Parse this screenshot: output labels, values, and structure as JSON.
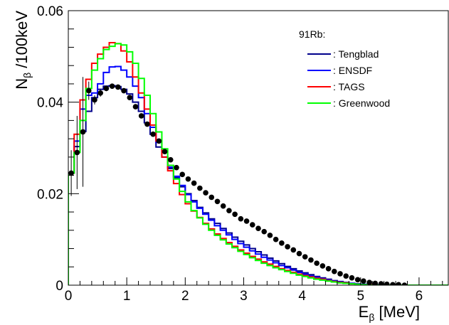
{
  "chart_data": {
    "type": "line",
    "xlabel_main": "E",
    "xlabel_sub": "β",
    "xlabel_unit": " [MeV]",
    "ylabel_main": "N",
    "ylabel_sub": "β",
    "ylabel_unit": " /100keV",
    "xlim": [
      0,
      6.5
    ],
    "ylim": [
      0,
      0.06
    ],
    "x_ticks": [
      0,
      1,
      2,
      3,
      4,
      5,
      6
    ],
    "x_tick_labels": [
      "0",
      "1",
      "2",
      "3",
      "4",
      "5",
      "6"
    ],
    "y_ticks": [
      0,
      0.02,
      0.04,
      0.06
    ],
    "y_tick_labels": [
      "0",
      "0.02",
      "0.04",
      "0.06"
    ],
    "legend_title": "91Rb:",
    "legend_position": "top-right",
    "bin_width": 0.1,
    "series": [
      {
        "name": ": Tengblad",
        "color": "#00008b",
        "style": "step",
        "values": [
          0.0245,
          0.0303,
          0.0336,
          0.038,
          0.041,
          0.0428,
          0.0435,
          0.0436,
          0.0434,
          0.0428,
          0.0418,
          0.04,
          0.038,
          0.0355,
          0.033,
          0.0302,
          0.028,
          0.0255,
          0.0235,
          0.0215,
          0.02,
          0.0185,
          0.017,
          0.0158,
          0.0145,
          0.0135,
          0.0124,
          0.0114,
          0.0105,
          0.0096,
          0.0088,
          0.008,
          0.0073,
          0.0066,
          0.0059,
          0.0053,
          0.0047,
          0.0041,
          0.0036,
          0.0031,
          0.0027,
          0.0023,
          0.0019,
          0.0016,
          0.0013,
          0.001,
          0.0008,
          0.0006,
          0.0004,
          0.0003,
          0.0002,
          0.0001,
          0.0001,
          0.0,
          0.0,
          0.0,
          0.0,
          0.0,
          0.0,
          0.0,
          0.0,
          0.0,
          0.0,
          0.0,
          0.0
        ]
      },
      {
        "name": ": ENSDF",
        "color": "#0000ff",
        "style": "step",
        "values": [
          0.0245,
          0.0315,
          0.0385,
          0.0415,
          0.042,
          0.044,
          0.0465,
          0.0477,
          0.0478,
          0.047,
          0.0455,
          0.0435,
          0.041,
          0.0375,
          0.0345,
          0.0312,
          0.028,
          0.0258,
          0.0238,
          0.0218,
          0.0198,
          0.0182,
          0.0168,
          0.0155,
          0.0142,
          0.013,
          0.012,
          0.011,
          0.01,
          0.0091,
          0.0083,
          0.0075,
          0.0068,
          0.0061,
          0.0055,
          0.0049,
          0.0043,
          0.0038,
          0.0033,
          0.0028,
          0.0024,
          0.002,
          0.0017,
          0.0014,
          0.0011,
          0.0009,
          0.0007,
          0.0005,
          0.0004,
          0.0003,
          0.0002,
          0.0001,
          0.0,
          0.0,
          0.0,
          0.0,
          0.0,
          0.0,
          0.0,
          0.0,
          0.0,
          0.0,
          0.0,
          0.0,
          0.0
        ]
      },
      {
        "name": ": TAGS",
        "color": "#ff0000",
        "style": "step",
        "values": [
          0.0245,
          0.033,
          0.0405,
          0.045,
          0.0485,
          0.0505,
          0.052,
          0.053,
          0.0528,
          0.0512,
          0.0488,
          0.0455,
          0.042,
          0.0385,
          0.035,
          0.0315,
          0.028,
          0.025,
          0.0222,
          0.0198,
          0.0178,
          0.0162,
          0.0148,
          0.0135,
          0.0123,
          0.0112,
          0.0102,
          0.0093,
          0.0085,
          0.0077,
          0.007,
          0.0063,
          0.0057,
          0.0051,
          0.0046,
          0.0041,
          0.0036,
          0.0032,
          0.0028,
          0.0024,
          0.0021,
          0.0018,
          0.0015,
          0.0013,
          0.001,
          0.0008,
          0.0006,
          0.0005,
          0.0003,
          0.0002,
          0.0001,
          0.0001,
          0.0,
          0.0,
          0.0,
          0.0,
          0.0,
          0.0,
          0.0,
          0.0,
          0.0,
          0.0,
          0.0,
          0.0,
          0.0
        ]
      },
      {
        "name": ": Greenwood",
        "color": "#00ff00",
        "style": "step",
        "values": [
          0.0245,
          0.029,
          0.036,
          0.043,
          0.047,
          0.0495,
          0.0515,
          0.0522,
          0.0528,
          0.0525,
          0.051,
          0.0485,
          0.0452,
          0.0415,
          0.0375,
          0.0335,
          0.0298,
          0.0262,
          0.0232,
          0.0205,
          0.0182,
          0.0163,
          0.0147,
          0.0133,
          0.012,
          0.0109,
          0.0099,
          0.009,
          0.0082,
          0.0074,
          0.0067,
          0.006,
          0.0054,
          0.0048,
          0.0043,
          0.0038,
          0.0034,
          0.003,
          0.0026,
          0.0022,
          0.0019,
          0.0016,
          0.0013,
          0.0011,
          0.0009,
          0.0007,
          0.0005,
          0.0004,
          0.0003,
          0.0002,
          0.0001,
          0.0,
          0.0,
          0.0,
          0.0,
          0.0,
          0.0,
          0.0,
          0.0,
          0.0,
          0.0,
          0.0,
          0.0,
          0.0,
          0.0
        ]
      }
    ],
    "data_points": {
      "marker_color": "#000000",
      "x": [
        0.05,
        0.15,
        0.25,
        0.35,
        0.45,
        0.55,
        0.65,
        0.75,
        0.85,
        0.95,
        1.05,
        1.15,
        1.25,
        1.35,
        1.45,
        1.55,
        1.65,
        1.75,
        1.85,
        1.95,
        2.05,
        2.15,
        2.25,
        2.35,
        2.45,
        2.55,
        2.65,
        2.75,
        2.85,
        2.95,
        3.05,
        3.15,
        3.25,
        3.35,
        3.45,
        3.55,
        3.65,
        3.75,
        3.85,
        3.95,
        4.05,
        4.15,
        4.25,
        4.35,
        4.45,
        4.55,
        4.65,
        4.75,
        4.85,
        4.95,
        5.05,
        5.15,
        5.25,
        5.35,
        5.45,
        5.55,
        5.65,
        5.75
      ],
      "y": [
        0.0245,
        0.029,
        0.0335,
        0.0425,
        0.0405,
        0.042,
        0.043,
        0.0435,
        0.0433,
        0.0425,
        0.041,
        0.039,
        0.037,
        0.0352,
        0.033,
        0.0315,
        0.0292,
        0.0274,
        0.0257,
        0.0242,
        0.0232,
        0.0223,
        0.0212,
        0.0202,
        0.0192,
        0.0183,
        0.0173,
        0.0163,
        0.0155,
        0.0145,
        0.014,
        0.0132,
        0.0124,
        0.0117,
        0.0109,
        0.01,
        0.0092,
        0.0084,
        0.0077,
        0.0069,
        0.0062,
        0.0055,
        0.0048,
        0.0042,
        0.0036,
        0.003,
        0.0025,
        0.002,
        0.0016,
        0.0012,
        0.0009,
        0.0006,
        0.0004,
        0.0003,
        0.0002,
        0.0001,
        0.0001,
        0.0
      ],
      "yerr": [
        0.005,
        0.008,
        0.012,
        0.002,
        0.001,
        0.0008,
        0.0006,
        0.0005,
        0.0005,
        0.0005,
        0.0005,
        0.0005,
        0.0005,
        0.0005,
        0.0004,
        0.0004,
        0.0004,
        0.0004,
        0.0004,
        0.0004,
        0.0004,
        0.0004,
        0.0004,
        0.0004,
        0.0004,
        0.0004,
        0.0004,
        0.0004,
        0.0004,
        0.0004,
        0.0004,
        0.0004,
        0.0004,
        0.0004,
        0.0004,
        0.0004,
        0.0004,
        0.0004,
        0.0004,
        0.0004,
        0.0004,
        0.0004,
        0.0004,
        0.0004,
        0.0004,
        0.0004,
        0.0004,
        0.0004,
        0.0004,
        0.0004,
        0.0004,
        0.0004,
        0.0004,
        0.0004,
        0.0004,
        0.0004,
        0.0004,
        0.0004
      ]
    }
  }
}
